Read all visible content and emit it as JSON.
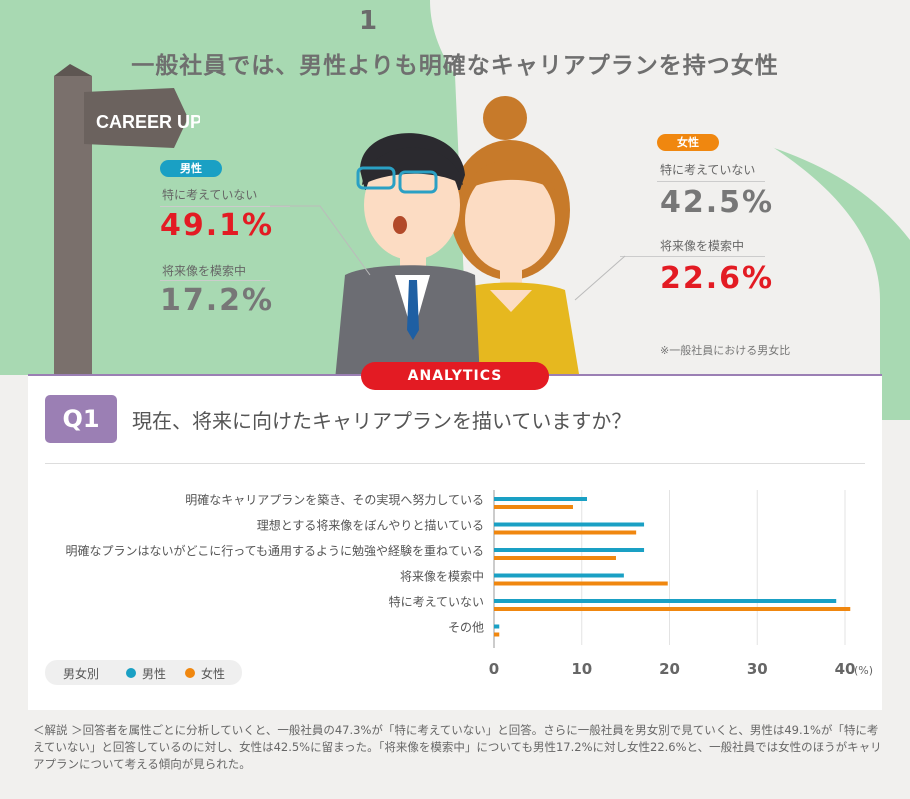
{
  "header": {
    "number": "1",
    "headline": "一般社員では、男性よりも明確なキャリアプランを持つ女性",
    "signpost": "CAREER UP",
    "note": "※一般社員における男女比"
  },
  "male": {
    "tag": "男性",
    "label1": "特に考えていない",
    "value1": "49.1%",
    "label2": "将来像を模索中",
    "value2": "17.2%"
  },
  "female": {
    "tag": "女性",
    "label1": "特に考えていない",
    "value1": "42.5%",
    "label2": "将来像を模索中",
    "value2": "22.6%"
  },
  "analytics_label": "ANALYTICS",
  "question": {
    "id": "Q1",
    "text": "現在、将来に向けたキャリアプランを描いていますか？"
  },
  "legend": {
    "title": "男女別",
    "male": "男性",
    "female": "女性"
  },
  "colors": {
    "male": "#1aa0c4",
    "female": "#f0870f",
    "accent": "#e31b23",
    "purple": "#9b7fb4",
    "green": "#a8d9b2"
  },
  "chart_data": {
    "type": "bar",
    "orientation": "horizontal",
    "categories": [
      "明確なキャリアプランを築き、その実現へ努力している",
      "理想とする将来像をぼんやりと描いている",
      "明確なプランはないがどこに行っても通用するように勉強や経験を重ねている",
      "将来像を模索中",
      "特に考えていない",
      "その他"
    ],
    "series": [
      {
        "name": "男性",
        "values": [
          10.6,
          17.1,
          17.1,
          14.8,
          39.0,
          0.6
        ]
      },
      {
        "name": "女性",
        "values": [
          9.0,
          16.2,
          13.9,
          19.8,
          40.6,
          0.6
        ]
      }
    ],
    "xlim": [
      0,
      40
    ],
    "xticks": [
      "0",
      "10",
      "20",
      "30",
      "40"
    ],
    "unit": "(%)"
  },
  "explanation": "＜解説 ＞回答者を属性ごとに分析していくと、一般社員の47.3%が「特に考えていない」と回答。さらに一般社員を男女別で見ていくと、男性は49.1%が「特に考えていない」と回答しているのに対し、女性は42.5%に留まった。「将来像を模索中」についても男性17.2%に対し女性22.6%と、一般社員では女性のほうがキャリアプランについて考える傾向が見られた。"
}
